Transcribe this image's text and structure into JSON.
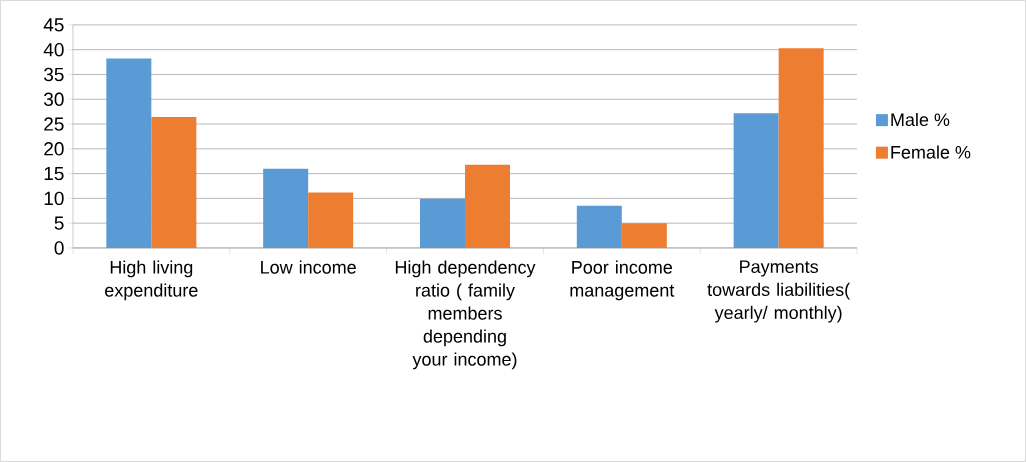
{
  "chart_data": {
    "type": "bar",
    "categories": [
      "High living expenditure",
      "Low income",
      "High dependency ratio ( family members depending your income)",
      "Poor income management",
      "Payments towards liabilities( yearly/ monthly)"
    ],
    "series": [
      {
        "name": "Male %",
        "color": "#5b9bd5",
        "values": [
          38.2,
          16.0,
          9.9,
          8.5,
          27.2
        ]
      },
      {
        "name": "Female %",
        "color": "#ed7d31",
        "values": [
          26.4,
          11.2,
          16.8,
          5.0,
          40.3
        ]
      }
    ],
    "ylim": [
      0,
      45
    ],
    "yticks": [
      0,
      5,
      10,
      15,
      20,
      25,
      30,
      35,
      40,
      45
    ],
    "grid": "y",
    "legend": "right"
  }
}
